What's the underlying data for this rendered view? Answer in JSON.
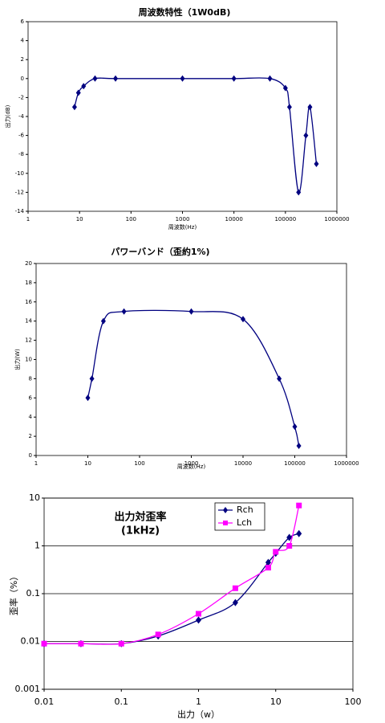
{
  "chart_data": [
    {
      "type": "line",
      "title": "周波数特性（1W0dB)",
      "xlabel": "周波数(Hz)",
      "ylabel": "出力(dB)",
      "log_x": true,
      "log_y": false,
      "smooth": true,
      "grid": false,
      "marker": "diamond",
      "color": "#000080",
      "x": [
        8,
        9.5,
        12,
        20,
        50,
        1000,
        10000,
        50000,
        100000,
        120000,
        180000,
        250000,
        300000,
        400000
      ],
      "values": [
        -3,
        -1.5,
        -0.8,
        0,
        0,
        0,
        0,
        0,
        -1,
        -3,
        -12,
        -6,
        -3,
        -9
      ],
      "xlim": [
        1,
        1000000
      ],
      "xticks": [
        1,
        10,
        100,
        1000,
        10000,
        100000,
        1000000
      ],
      "ylim": [
        -14,
        6
      ],
      "yticks": [
        -14,
        -12,
        -10,
        -8,
        -6,
        -4,
        -2,
        0,
        2,
        4,
        6
      ]
    },
    {
      "type": "line",
      "title": "パワーバンド（歪約1%)",
      "xlabel": "周波数(Hz)",
      "ylabel": "出力(W)",
      "log_x": true,
      "log_y": false,
      "smooth": true,
      "grid": false,
      "marker": "diamond",
      "color": "#000080",
      "x": [
        10,
        12,
        20,
        50,
        1000,
        10000,
        50000,
        100000,
        120000
      ],
      "values": [
        6,
        8,
        14,
        15,
        15,
        14.2,
        8,
        3,
        1
      ],
      "xlim": [
        1,
        1000000
      ],
      "xticks": [
        1,
        10,
        100,
        1000,
        10000,
        100000,
        1000000
      ],
      "ylim": [
        0,
        20
      ],
      "yticks": [
        0,
        2,
        4,
        6,
        8,
        10,
        12,
        14,
        16,
        18,
        20
      ]
    },
    {
      "type": "line",
      "title": "出力対歪率",
      "subtitle": "(1kHz)",
      "xlabel": "出力（w）",
      "ylabel": "歪率（%）",
      "log_x": true,
      "log_y": true,
      "smooth": true,
      "grid": true,
      "legend": "top-right",
      "x": [
        0.01,
        0.03,
        0.1,
        0.3,
        1,
        3,
        8,
        10,
        15,
        20
      ],
      "series": [
        {
          "name": "Rch",
          "color": "#000080",
          "marker": "diamond",
          "values": [
            0.009,
            0.009,
            0.009,
            0.013,
            0.028,
            0.065,
            0.45,
            0.7,
            1.5,
            1.8
          ]
        },
        {
          "name": "Lch",
          "color": "#ff00ff",
          "marker": "square",
          "values": [
            0.009,
            0.009,
            0.009,
            0.014,
            0.038,
            0.13,
            0.35,
            0.75,
            1.0,
            7
          ]
        }
      ],
      "xlim": [
        0.01,
        100
      ],
      "xticks": [
        0.01,
        0.1,
        1,
        10,
        100
      ],
      "ylim": [
        0.001,
        10
      ],
      "yticks": [
        0.001,
        0.01,
        0.1,
        1,
        10
      ]
    }
  ]
}
